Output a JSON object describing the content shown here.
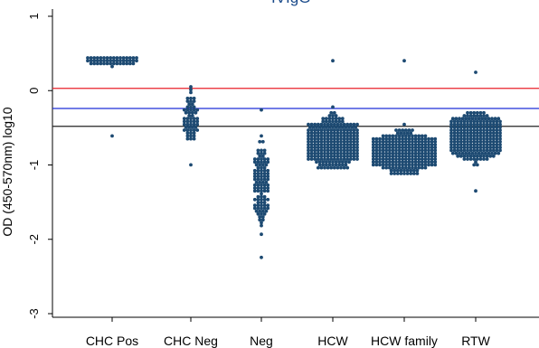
{
  "chart_data": {
    "type": "scatter",
    "subtype": "beeswarm",
    "title": "IVIgG",
    "ylabel": "OD (450-570nm) log10",
    "xlabel": "",
    "ylim": [
      -3,
      1
    ],
    "yticks": [
      1,
      0,
      -1,
      -2,
      -3
    ],
    "categories": [
      "CHC Pos",
      "CHC Neg",
      "Neg",
      "HCW",
      "HCW family",
      "RTW"
    ],
    "reference_lines": [
      {
        "value": 0.03,
        "color": "#e8202a"
      },
      {
        "value": -0.24,
        "color": "#1f2fd8"
      },
      {
        "value": -0.48,
        "color": "#222222"
      }
    ],
    "point_color": "#1d4a72",
    "series": [
      {
        "category": "CHC Pos",
        "center": 0.42,
        "spread": 0.03,
        "min": -0.62,
        "max": 0.45,
        "n": 120,
        "width_scale": 1.0
      },
      {
        "category": "CHC Neg",
        "center": -0.42,
        "spread": 0.18,
        "min": -0.98,
        "max": 0.05,
        "n": 60,
        "width_scale": 0.35
      },
      {
        "category": "Neg",
        "center": -1.25,
        "spread": 0.3,
        "min": -2.25,
        "max": -0.25,
        "n": 130,
        "width_scale": 0.35
      },
      {
        "category": "HCW",
        "center": -0.7,
        "spread": 0.15,
        "min": -1.05,
        "max": 0.4,
        "n": 520,
        "width_scale": 1.0
      },
      {
        "category": "HCW family",
        "center": -0.82,
        "spread": 0.12,
        "min": -1.1,
        "max": 0.4,
        "n": 560,
        "width_scale": 1.2
      },
      {
        "category": "RTW",
        "center": -0.62,
        "spread": 0.14,
        "min": -1.35,
        "max": 0.25,
        "n": 520,
        "width_scale": 1.0
      }
    ]
  }
}
